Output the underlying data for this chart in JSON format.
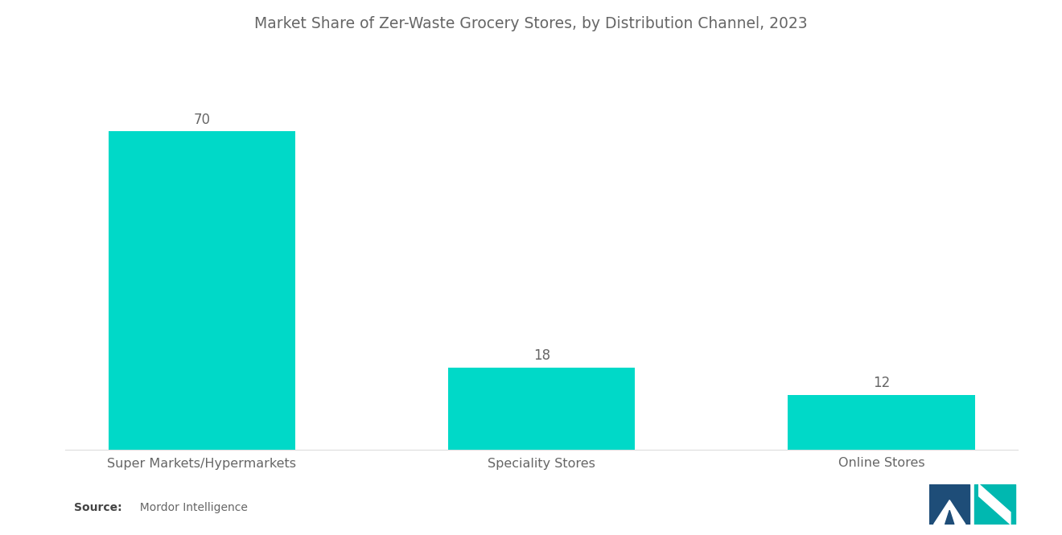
{
  "title": "Market Share of Zer-Waste Grocery Stores, by Distribution Channel, 2023",
  "categories": [
    "Super Markets/Hypermarkets",
    "Speciality Stores",
    "Online Stores"
  ],
  "values": [
    70,
    18,
    12
  ],
  "bar_color": "#00D9C8",
  "title_fontsize": 13.5,
  "label_fontsize": 11.5,
  "value_fontsize": 12,
  "source_bold": "Source:",
  "source_normal": "  Mordor Intelligence",
  "background_color": "#ffffff",
  "text_color": "#666666",
  "ylim": [
    0,
    82
  ],
  "bar_width": 0.55,
  "logo_navy": "#1e4d78",
  "logo_teal": "#00b8b0"
}
